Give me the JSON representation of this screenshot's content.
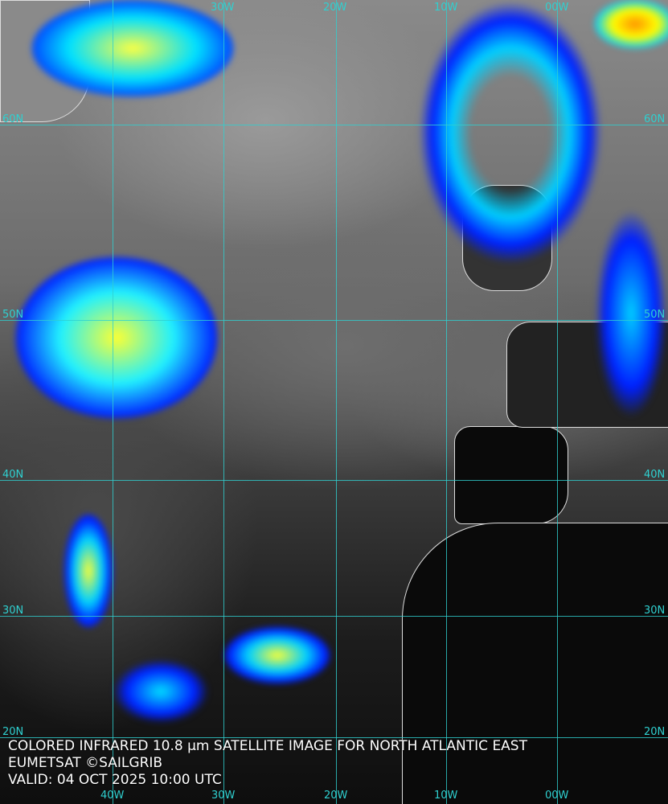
{
  "caption": {
    "title": "COLORED INFRARED 10.8 µm SATELLITE IMAGE FOR NORTH ATLANTIC EAST",
    "credit": "EUMETSAT ©SAILGRIB",
    "valid": "VALID:  04 OCT 2025 10:00 UTC"
  },
  "grid": {
    "longitudes": [
      "40W",
      "30W",
      "20W",
      "10W",
      "00W"
    ],
    "latitudes": [
      "60N",
      "50N",
      "40N",
      "30N",
      "20N"
    ],
    "line_color": "#2fd0d0"
  },
  "colors": {
    "cold_cloud_scale": [
      "#0000ff",
      "#00bfff",
      "#00ffff",
      "#ffff00",
      "#ff8000"
    ]
  }
}
